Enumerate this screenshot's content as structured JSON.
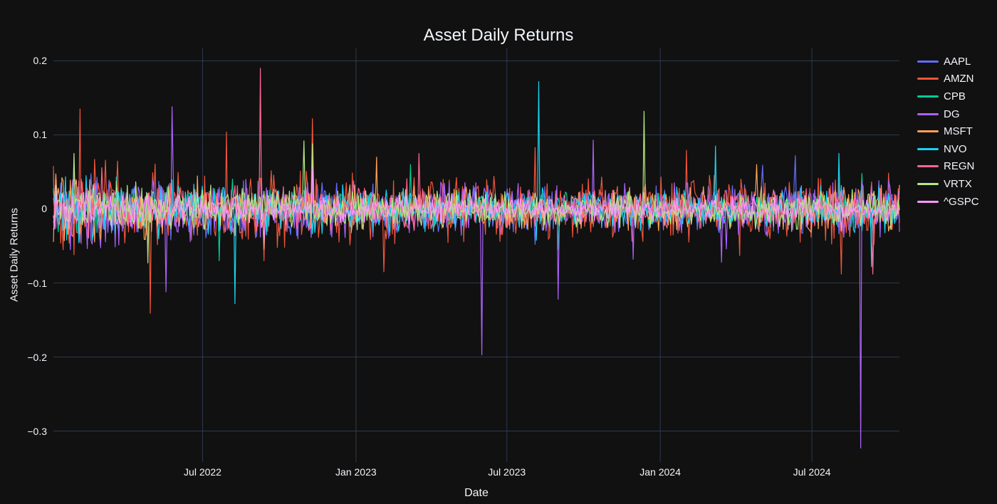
{
  "colors": {
    "background": "#111111",
    "grid": "#2c3a4e",
    "text": "#f2f5fa"
  },
  "chart_data": {
    "type": "line",
    "title": "Asset Daily Returns",
    "xlabel": "Date",
    "ylabel": "Asset Daily Returns",
    "x_range": [
      "2022-01-03",
      "2024-10-14"
    ],
    "ylim": [
      -0.3418,
      0.2168
    ],
    "y_ticks": [
      0.2,
      0.1,
      0,
      -0.1,
      -0.2,
      -0.3
    ],
    "y_tick_labels": [
      "0.2",
      "0.1",
      "0",
      "−0.1",
      "−0.2",
      "−0.3"
    ],
    "x_ticks": [
      "2022-07-01",
      "2023-01-01",
      "2023-07-01",
      "2024-01-01",
      "2024-07-01"
    ],
    "x_tick_labels": [
      "Jul 2022",
      "Jan 2023",
      "Jul 2023",
      "Jan 2024",
      "Jul 2024"
    ],
    "grid": true,
    "legend_position": "right-outside",
    "n_points": 700,
    "seed": 7,
    "volatility_envelope": [
      [
        0,
        1.35
      ],
      [
        0.18,
        1.05
      ],
      [
        0.38,
        0.9
      ],
      [
        0.6,
        0.8
      ],
      [
        0.85,
        0.88
      ],
      [
        1,
        0.92
      ]
    ],
    "series": [
      {
        "name": "AAPL",
        "color": "#636EFA",
        "daily_stdev": 0.017,
        "outliers": [
          [
            "2022-01-28",
            0.07
          ],
          [
            "2022-09-13",
            -0.059
          ],
          [
            "2022-11-10",
            0.088
          ],
          [
            "2023-08-04",
            -0.048
          ],
          [
            "2024-05-03",
            0.059
          ],
          [
            "2024-06-11",
            0.072
          ]
        ]
      },
      {
        "name": "AMZN",
        "color": "#EF553B",
        "daily_stdev": 0.024,
        "outliers": [
          [
            "2022-02-04",
            0.135
          ],
          [
            "2022-04-29",
            -0.141
          ],
          [
            "2022-07-29",
            0.104
          ],
          [
            "2022-09-13",
            -0.07
          ],
          [
            "2022-11-10",
            0.122
          ],
          [
            "2023-02-03",
            -0.085
          ],
          [
            "2023-08-04",
            0.083
          ],
          [
            "2024-02-02",
            0.079
          ],
          [
            "2024-08-05",
            -0.088
          ]
        ]
      },
      {
        "name": "CPB",
        "color": "#00CC96",
        "daily_stdev": 0.012,
        "outliers": [
          [
            "2022-07-21",
            -0.07
          ],
          [
            "2023-03-08",
            0.06
          ],
          [
            "2023-08-31",
            -0.055
          ],
          [
            "2024-08-30",
            0.048
          ]
        ]
      },
      {
        "name": "DG",
        "color": "#AB63FA",
        "daily_stdev": 0.019,
        "outliers": [
          [
            "2022-05-18",
            -0.112
          ],
          [
            "2022-05-26",
            0.138
          ],
          [
            "2023-06-01",
            -0.197
          ],
          [
            "2023-08-31",
            -0.122
          ],
          [
            "2023-10-12",
            0.093
          ],
          [
            "2023-11-30",
            -0.068
          ],
          [
            "2024-03-14",
            -0.072
          ],
          [
            "2024-08-29",
            -0.323
          ]
        ]
      },
      {
        "name": "MSFT",
        "color": "#FFA15A",
        "daily_stdev": 0.016,
        "outliers": [
          [
            "2022-09-13",
            -0.055
          ],
          [
            "2022-11-10",
            0.082
          ],
          [
            "2023-01-25",
            0.07
          ],
          [
            "2024-04-26",
            0.06
          ]
        ]
      },
      {
        "name": "NVO",
        "color": "#19D3F3",
        "daily_stdev": 0.016,
        "outliers": [
          [
            "2022-08-09",
            -0.128
          ],
          [
            "2023-08-08",
            0.172
          ],
          [
            "2024-03-07",
            0.085
          ],
          [
            "2024-08-02",
            0.075
          ],
          [
            "2024-09-10",
            -0.078
          ]
        ]
      },
      {
        "name": "REGN",
        "color": "#FF6692",
        "daily_stdev": 0.014,
        "outliers": [
          [
            "2022-09-09",
            0.19
          ],
          [
            "2023-03-17",
            0.075
          ],
          [
            "2024-09-12",
            -0.088
          ]
        ]
      },
      {
        "name": "VRTX",
        "color": "#B6E880",
        "daily_stdev": 0.014,
        "outliers": [
          [
            "2022-01-27",
            0.075
          ],
          [
            "2022-04-26",
            -0.073
          ],
          [
            "2022-10-31",
            0.092
          ],
          [
            "2022-11-10",
            0.088
          ],
          [
            "2023-12-12",
            0.132
          ]
        ]
      },
      {
        "name": "^GSPC",
        "color": "#FF97FF",
        "daily_stdev": 0.009,
        "outliers": [
          [
            "2022-09-13",
            -0.043
          ],
          [
            "2022-11-10",
            0.055
          ],
          [
            "2024-08-05",
            -0.03
          ]
        ]
      }
    ]
  }
}
